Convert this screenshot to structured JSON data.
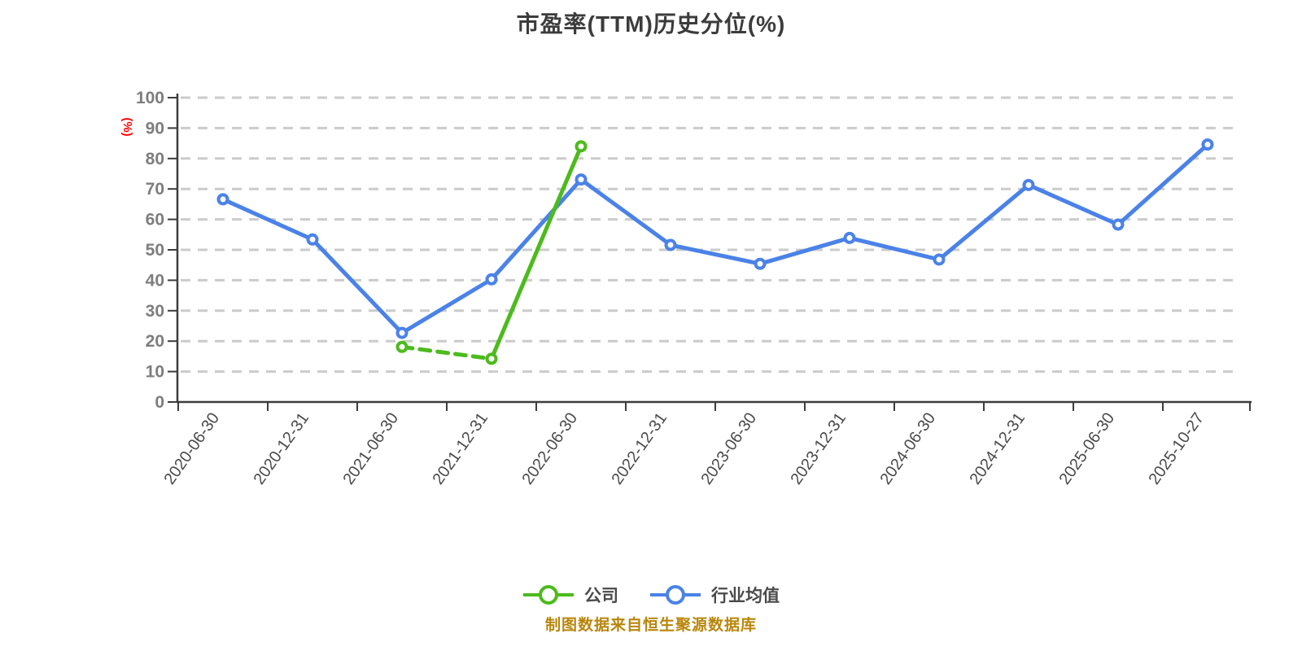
{
  "title": "市盈率(TTM)历史分位(%)",
  "y_axis": {
    "unit_label": "(%)",
    "ticks": [
      0,
      10,
      20,
      30,
      40,
      50,
      60,
      70,
      80,
      90,
      100
    ]
  },
  "legend": {
    "items": [
      {
        "key": "company",
        "label": "公司"
      },
      {
        "key": "industry-average",
        "label": "行业均值"
      }
    ]
  },
  "footer": {
    "source_note": "制图数据来自恒生聚源数据库"
  },
  "colors": {
    "title": "#3C3C3C",
    "axis": "#3C3C3C",
    "grid": "#CBCBCB",
    "y_tick_label": "#7D7D7D",
    "x_tick_label": "#4A4A4A",
    "y_unit_label": "#FF0000",
    "legend_text": "#4A4A4A",
    "footer_note": "#B8860B",
    "company": "#4CBB1C",
    "industry": "#4A82E8"
  },
  "chart_data": {
    "type": "line",
    "title": "市盈率(TTM)历史分位(%)",
    "ylabel": "(%)",
    "ylim": [
      0,
      100
    ],
    "y_ticks": [
      0,
      10,
      20,
      30,
      40,
      50,
      60,
      70,
      80,
      90,
      100
    ],
    "grid": "horizontal-dashed",
    "legend_position": "bottom",
    "categories": [
      "2020-06-30",
      "2020-12-31",
      "2021-06-30",
      "2021-12-31",
      "2022-06-30",
      "2022-12-31",
      "2023-06-30",
      "2023-12-31",
      "2024-06-30",
      "2024-12-31",
      "2025-06-30",
      "2025-10-27"
    ],
    "series": [
      {
        "key": "company",
        "name": "公司",
        "color": "#4CBB1C",
        "values": [
          null,
          null,
          18.1,
          14.2,
          84.0,
          null,
          null,
          null,
          null,
          null,
          null,
          null
        ],
        "dashed_segments": [
          [
            2,
            3
          ]
        ]
      },
      {
        "key": "industry-average",
        "name": "行业均值",
        "color": "#4A82E8",
        "values": [
          66.6,
          53.4,
          22.7,
          40.3,
          73.1,
          51.6,
          45.4,
          53.9,
          46.8,
          71.3,
          58.3,
          84.6
        ],
        "dashed_segments": []
      }
    ]
  }
}
